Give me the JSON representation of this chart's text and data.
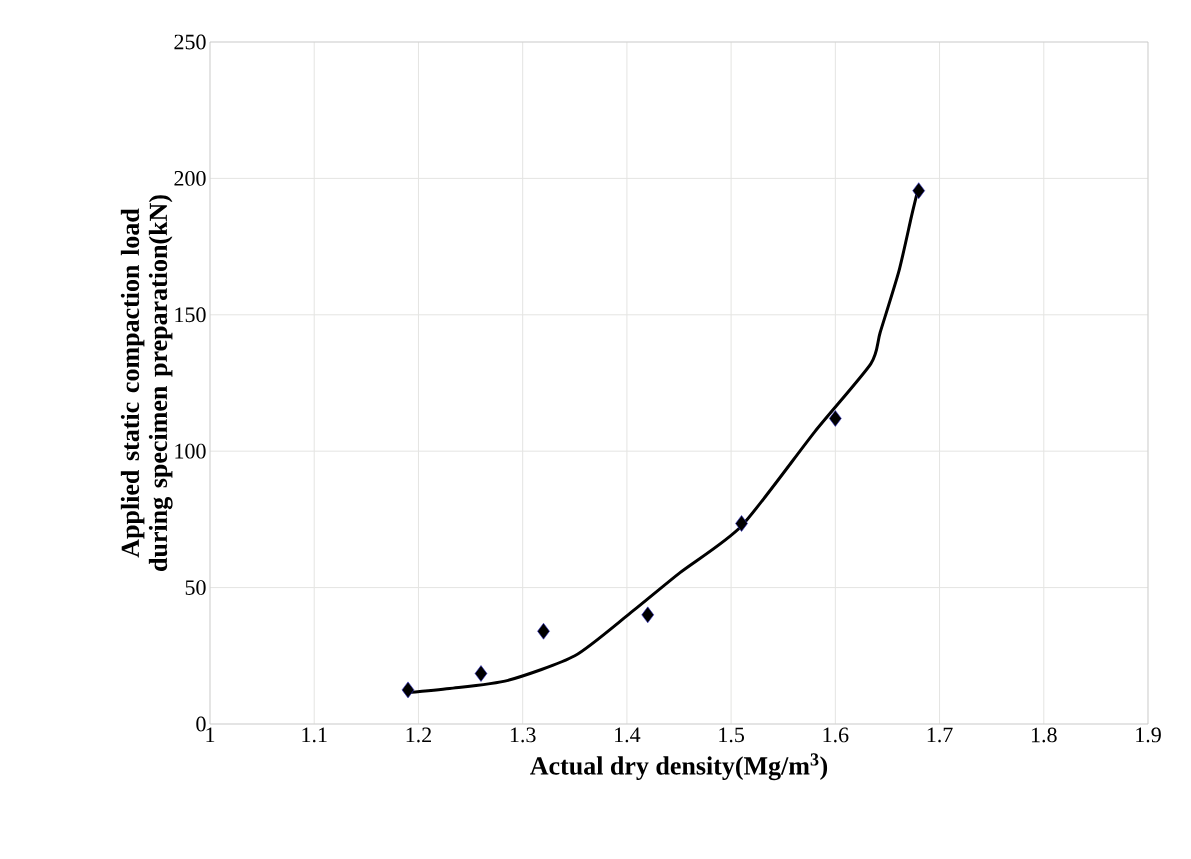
{
  "chart_data": {
    "type": "scatter",
    "xlabel": "Actual dry density(Mg/m$^{3}$)",
    "ylabel": "Applied static compaction load during specimen preparation(kN)",
    "xlim": [
      1,
      1.9
    ],
    "xticks": [
      1,
      1.1,
      1.2,
      1.3,
      1.4,
      1.5,
      1.6,
      1.7,
      1.8,
      1.9
    ],
    "ylim": [
      0,
      250
    ],
    "yticks": [
      0,
      50,
      100,
      150,
      200,
      250
    ],
    "grid": true,
    "series": [
      {
        "marker": "diamond",
        "color": "#000000",
        "x": [
          1.19,
          1.26,
          1.32,
          1.42,
          1.51,
          1.6,
          1.68
        ],
        "values": [
          12.5,
          18.5,
          34,
          40,
          73.5,
          112,
          195.5
        ]
      },
      {
        "type": "line",
        "marker": "none",
        "line_style": "solid",
        "color": "#000000",
        "x": [
          1.19,
          1.23,
          1.286,
          1.35,
          1.404,
          1.451,
          1.51,
          1.58,
          1.634,
          1.643,
          1.661,
          1.673,
          1.679
        ],
        "values": [
          11.5,
          13,
          16,
          25,
          40.9,
          55.5,
          72.6,
          107,
          132,
          143.5,
          166,
          186,
          195.4
        ]
      }
    ]
  }
}
